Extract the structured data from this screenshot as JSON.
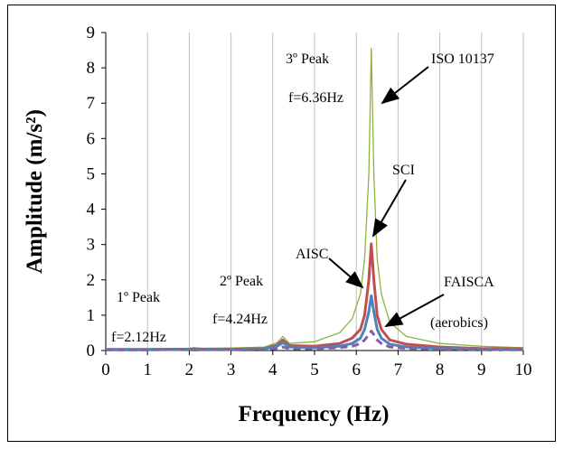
{
  "chart_data": {
    "type": "line",
    "xlabel": "Frequency (Hz)",
    "ylabel": "Amplitude (m/s²)",
    "xlim": [
      0,
      10
    ],
    "ylim": [
      0,
      9
    ],
    "x_ticks": [
      0,
      1,
      2,
      3,
      4,
      5,
      6,
      7,
      8,
      9,
      10
    ],
    "y_ticks": [
      0,
      1,
      2,
      3,
      4,
      5,
      6,
      7,
      8,
      9
    ],
    "grid": "vertical",
    "legend": "none",
    "peaks": [
      {
        "name": "1º Peak",
        "freq_label": "f=2.12Hz",
        "x": 2.12
      },
      {
        "name": "2º Peak",
        "freq_label": "f=4.24Hz",
        "x": 4.24
      },
      {
        "name": "3º Peak",
        "freq_label": "f=6.36Hz",
        "x": 6.36
      }
    ],
    "series": [
      {
        "name": "ISO 10137",
        "color": "#8db33f",
        "x": [
          0,
          1,
          2,
          2.12,
          2.3,
          3,
          3.8,
          4.1,
          4.24,
          4.4,
          5,
          5.6,
          5.9,
          6.1,
          6.2,
          6.3,
          6.36,
          6.42,
          6.5,
          6.6,
          6.8,
          7.2,
          8,
          9,
          10
        ],
        "y": [
          0.05,
          0.05,
          0.06,
          0.08,
          0.06,
          0.07,
          0.1,
          0.22,
          0.4,
          0.2,
          0.25,
          0.5,
          0.9,
          1.6,
          2.6,
          5.0,
          8.55,
          5.0,
          2.6,
          1.6,
          0.8,
          0.4,
          0.2,
          0.12,
          0.08
        ]
      },
      {
        "name": "SCI",
        "color": "#c0504d",
        "x": [
          0,
          1,
          2,
          2.12,
          2.3,
          3,
          3.8,
          4.1,
          4.24,
          4.4,
          5,
          5.6,
          5.9,
          6.1,
          6.2,
          6.3,
          6.36,
          6.42,
          6.5,
          6.6,
          6.8,
          7.2,
          8,
          9,
          10
        ],
        "y": [
          0.03,
          0.03,
          0.04,
          0.05,
          0.04,
          0.04,
          0.06,
          0.15,
          0.3,
          0.14,
          0.12,
          0.2,
          0.35,
          0.6,
          1.0,
          2.0,
          3.02,
          2.0,
          1.0,
          0.6,
          0.3,
          0.18,
          0.1,
          0.06,
          0.05
        ]
      },
      {
        "name": "AISC",
        "color": "#4f81bd",
        "x": [
          0,
          1,
          2,
          2.12,
          2.3,
          3,
          3.8,
          4.1,
          4.24,
          4.4,
          5,
          5.6,
          5.9,
          6.1,
          6.2,
          6.3,
          6.36,
          6.42,
          6.5,
          6.6,
          6.8,
          7.2,
          8,
          9,
          10
        ],
        "y": [
          0.02,
          0.02,
          0.03,
          0.04,
          0.03,
          0.03,
          0.05,
          0.12,
          0.22,
          0.1,
          0.08,
          0.12,
          0.2,
          0.35,
          0.6,
          1.1,
          1.55,
          1.1,
          0.6,
          0.35,
          0.18,
          0.1,
          0.06,
          0.04,
          0.03
        ]
      },
      {
        "name": "FAISCA (aerobics)",
        "color": "#8064a2",
        "dashed": true,
        "x": [
          0,
          1,
          2,
          2.12,
          2.3,
          3,
          3.8,
          4.1,
          4.24,
          4.4,
          5,
          5.6,
          5.9,
          6.1,
          6.2,
          6.3,
          6.36,
          6.42,
          6.5,
          6.6,
          6.8,
          7.2,
          8,
          9,
          10
        ],
        "y": [
          0.02,
          0.02,
          0.03,
          0.04,
          0.03,
          0.03,
          0.04,
          0.06,
          0.1,
          0.05,
          0.05,
          0.08,
          0.12,
          0.2,
          0.3,
          0.45,
          0.55,
          0.45,
          0.3,
          0.2,
          0.1,
          0.06,
          0.04,
          0.03,
          0.02
        ]
      }
    ],
    "annotations": [
      {
        "text": "ISO 10137",
        "series": "ISO 10137"
      },
      {
        "text": "SCI",
        "series": "SCI"
      },
      {
        "text": "AISC",
        "series": "AISC"
      },
      {
        "text": "FAISCA",
        "series": "FAISCA (aerobics)"
      },
      {
        "text": "(aerobics)",
        "series": "FAISCA (aerobics)"
      }
    ]
  }
}
